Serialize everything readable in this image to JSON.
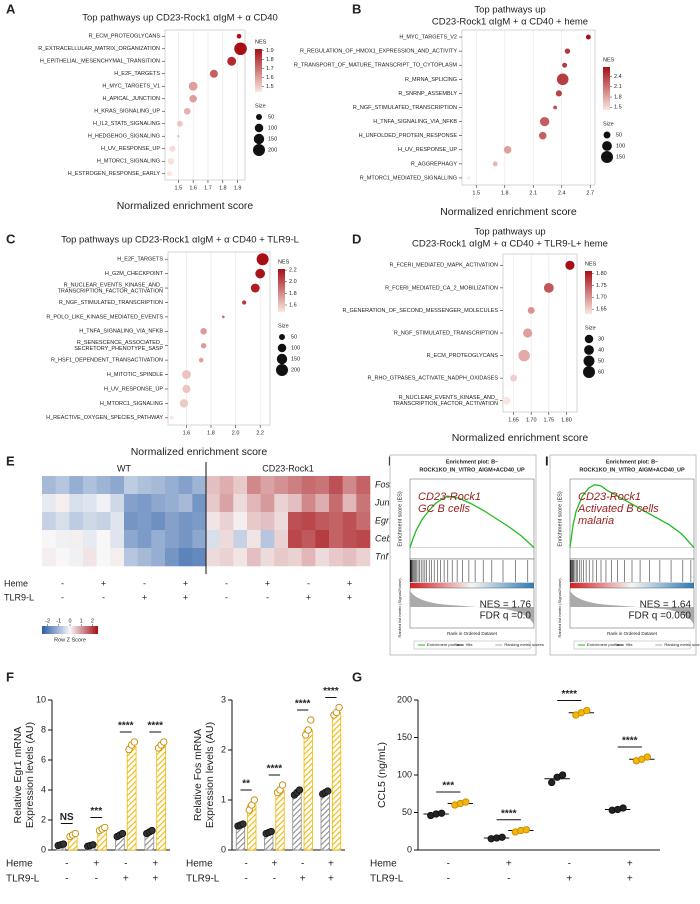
{
  "chart_data": [
    {
      "type": "dotplot",
      "panel_label": "A",
      "title": [
        "Top pathways up CD23-Rock1 αIgM + α CD40"
      ],
      "categories": [
        "R_ECM_PROTEOGLYCANS",
        "R_EXTRACELLULAR_MATRIX_ORGANIZATION",
        "H_EPITHELIAL_MESENCHYMAL_TRANSITION",
        "H_E2F_TARGETS",
        "H_MYC_TARGETS_V1",
        "H_APICAL_JUNCTION",
        "H_KRAS_SIGNALING_UP",
        "H_IL2_STAT5_SIGNALING",
        "H_HEDGEHOG_SIGNALING",
        "H_UV_RESPONSE_UP",
        "H_MTORC1_SIGNALING",
        "H_ESTROGEN_RESPONSE_EARLY"
      ],
      "values": [
        1.91,
        1.92,
        1.86,
        1.74,
        1.6,
        1.6,
        1.56,
        1.51,
        1.5,
        1.46,
        1.45,
        1.44
      ],
      "sizes": [
        30,
        220,
        110,
        90,
        110,
        80,
        60,
        50,
        10,
        50,
        60,
        40
      ],
      "xlim": [
        1.41,
        1.95
      ],
      "xticks": [
        1.5,
        1.6,
        1.7,
        1.8,
        1.9
      ],
      "xlabel": "Normalized enrichment score",
      "color_title": "NES",
      "color_range": [
        1.44,
        1.92
      ],
      "color_ticks": [
        1.5,
        1.6,
        1.7,
        1.8,
        1.9
      ],
      "color_low": "#fbe6df",
      "color_high": "#a50f15",
      "size_title": "Size",
      "size_legend": [
        50,
        100,
        150,
        200
      ]
    },
    {
      "type": "dotplot",
      "panel_label": "B",
      "title": [
        "Top pathways up",
        "CD23-Rock1 αIgM + α CD40 + heme"
      ],
      "categories": [
        "H_MYC_TARGETS_V2",
        "R_REGULATION_OF_HMOX1_EXPRESSION_AND_ACTIVITY",
        "R_TRANSPORT_OF_MATURE_TRANSCRIPT_TO_CYTOPLASM",
        "R_MRNA_SPLICING",
        "R_SNRNP_ASSEMBLY",
        "R_NGF_STIMULATED_TRANSCRIPTION",
        "H_TNFA_SIGNALING_VIA_NFKB",
        "H_UNFOLDED_PROTEIN_RESPONSE",
        "H_UV_RESPONSE_UP",
        "R_AGGREPHAGY",
        "R_MTORC1_MEDIATED_SIGNALLING"
      ],
      "values": [
        2.68,
        2.46,
        2.43,
        2.41,
        2.37,
        2.33,
        2.22,
        2.2,
        1.83,
        1.7,
        1.42
      ],
      "sizes": [
        25,
        30,
        25,
        140,
        40,
        15,
        90,
        60,
        60,
        25,
        10
      ],
      "xlim": [
        1.35,
        2.75
      ],
      "xticks": [
        1.5,
        1.8,
        2.1,
        2.4,
        2.7
      ],
      "xlabel": "Normalized enrichment score",
      "color_title": "NES",
      "color_range": [
        1.42,
        2.68
      ],
      "color_ticks": [
        1.5,
        1.8,
        2.1,
        2.4
      ],
      "color_low": "#fbe6df",
      "color_high": "#a50f15",
      "size_title": "Size",
      "size_legend": [
        50,
        100,
        150
      ]
    },
    {
      "type": "dotplot",
      "panel_label": "C",
      "title": [
        "Top pathways up CD23-Rock1 αIgM + α CD40 + TLR9-L"
      ],
      "categories": [
        "H_E2F_TARGETS",
        "H_G2M_CHECKPOINT",
        "R_NUCLEAR_EVENTS_KINASE_AND_\nTRANSCRIPTION_FACTOR_ACTIVATION",
        "R_NGF_STIMULATED_TRANSCRIPTION",
        "R_POLO_LIKE_KINASE_MEDIATED_EVENTS",
        "H_TNFA_SIGNALING_VIA_NFKB",
        "R_SENESCENCE_ASSOCIATED_\nSECRETORY_PHENOTYPE_SASP",
        "R_HSF1_DEPENDENT_TRANSACTIVATION",
        "H_MITOTIC_SPINDLE",
        "H_UV_RESPONSE_UP",
        "H_MTORC1_SIGNALING",
        "H_REACTIVE_OXYGEN_SPECIES_PATHWAY"
      ],
      "values": [
        2.22,
        2.2,
        2.16,
        2.07,
        1.9,
        1.74,
        1.74,
        1.72,
        1.6,
        1.6,
        1.58,
        1.48
      ],
      "sizes": [
        200,
        130,
        110,
        25,
        10,
        60,
        40,
        30,
        110,
        90,
        100,
        20
      ],
      "xlim": [
        1.45,
        2.28
      ],
      "xticks": [
        1.6,
        1.8,
        {
          "value": 2,
          "label": "2.0"
        },
        2.2
      ],
      "xlabel": "Normalized enrichment score",
      "color_title": "NES",
      "color_range": [
        1.48,
        2.22
      ],
      "color_ticks": [
        1.6,
        1.8,
        {
          "value": 2,
          "label": "2.0"
        },
        2.2
      ],
      "color_low": "#fbe6df",
      "color_high": "#a50f15",
      "size_title": "Size",
      "size_legend": [
        50,
        100,
        150,
        200
      ]
    },
    {
      "type": "dotplot",
      "panel_label": "D",
      "title": [
        "Top pathways up",
        "CD23-Rock1 αIgM + α CD40 + TLR9-L+ heme"
      ],
      "categories": [
        "R_FCERI_MEDIATED_MAPK_ACTIVATION",
        "R_FCERI_MEDIATED_CA_2_MOBILIZATION",
        "R_GENERATION_OF_SECOND_MESSENGER_MOLECULES",
        "R_NGF_STIMULATED_TRANSCRIPTION",
        "R_ECM_PROTEOGLYCANS",
        "R_RHO_GTPASES_ACTIVATE_NADPH_OXIDASES",
        "R_NUCLEAR_EVENTS_KINASE_AND_\nTRANSCRIPTION_FACTOR_ACTIVATION"
      ],
      "values": [
        1.81,
        1.75,
        1.7,
        1.69,
        1.68,
        1.65,
        1.63
      ],
      "sizes": [
        35,
        40,
        20,
        35,
        55,
        20,
        25
      ],
      "xlim": [
        1.62,
        1.83
      ],
      "xticks": [
        1.65,
        {
          "value": 1.7,
          "label": "1.70"
        },
        1.75,
        {
          "value": 1.8,
          "label": "1.80"
        }
      ],
      "xlabel": "Normalized enrichment score",
      "color_title": "NES",
      "color_range": [
        1.63,
        1.81
      ],
      "color_ticks": [
        1.65,
        {
          "value": 1.7,
          "label": "1.70"
        },
        1.75,
        {
          "value": 1.8,
          "label": "1.80"
        }
      ],
      "color_low": "#fbe6df",
      "color_high": "#a50f15",
      "size_title": "Size",
      "size_legend": [
        30,
        40,
        50,
        60
      ]
    },
    {
      "type": "heatmap",
      "panel_label": "E",
      "column_groups": [
        "WT",
        "CD23-Rock1"
      ],
      "row_labels": [
        "Fos",
        "Junb",
        "Egr1",
        "Cebpb",
        "Tnf"
      ],
      "values": [
        [
          -1.0,
          -0.8,
          -1.2,
          -0.9,
          -1.1,
          -1.3,
          -0.7,
          -0.9,
          -1.0,
          -1.2,
          -1.4,
          -1.1,
          0.6,
          0.8,
          0.5,
          1.2,
          0.9,
          1.1,
          1.3,
          1.5,
          1.4,
          1.8,
          1.2,
          1.6
        ],
        [
          -0.2,
          0.1,
          -0.4,
          -0.3,
          -0.1,
          -0.5,
          -1.4,
          -1.5,
          -1.3,
          -1.2,
          -1.0,
          -1.6,
          0.5,
          0.9,
          0.3,
          0.7,
          1.0,
          0.4,
          0.6,
          1.2,
          0.8,
          1.5,
          0.7,
          1.4
        ],
        [
          -0.6,
          -0.4,
          -0.7,
          -0.5,
          -0.6,
          -0.3,
          -1.6,
          -1.5,
          -1.7,
          -1.4,
          -1.6,
          -1.5,
          0.2,
          0.4,
          0.1,
          0.5,
          0.6,
          0.3,
          1.8,
          1.9,
          1.7,
          1.6,
          1.8,
          1.5
        ],
        [
          0.0,
          -0.1,
          0.1,
          -0.2,
          0.0,
          -0.3,
          -1.3,
          -1.5,
          -1.2,
          -1.4,
          -1.6,
          -1.3,
          -0.4,
          0.3,
          -0.6,
          0.2,
          -0.8,
          0.4,
          1.9,
          1.7,
          2.0,
          1.6,
          1.8,
          1.9
        ],
        [
          0.1,
          0.0,
          -0.1,
          0.2,
          0.0,
          0.1,
          -0.8,
          -1.0,
          -1.2,
          -1.6,
          -1.9,
          -1.8,
          0.3,
          0.4,
          0.2,
          0.6,
          0.3,
          0.5,
          0.4,
          0.7,
          0.3,
          0.5,
          0.6,
          0.4
        ]
      ],
      "conditions": [
        {
          "name": "Heme",
          "labels": [
            "-",
            "+",
            "-",
            "+",
            "-",
            "+",
            "-",
            "+"
          ]
        },
        {
          "name": "TLR9-L",
          "labels": [
            "-",
            "-",
            "+",
            "+",
            "-",
            "-",
            "+",
            "+"
          ]
        }
      ],
      "zlim": [
        -2.5,
        2.5
      ],
      "colors": [
        "#2c5ea8",
        "#f7f7f7",
        "#a50f15"
      ],
      "color_ticks": [
        -2,
        -1,
        0,
        1,
        2
      ],
      "color_title": "Row Z Score"
    },
    {
      "type": "line",
      "panel_label": "H",
      "title": [
        "Enrichment plot: B–",
        "ROCK1KO_IN_VITRO_AIGM+ACD40_UP"
      ],
      "x": [
        0,
        500,
        1000,
        2000,
        3000,
        4000,
        5000,
        6000,
        8000,
        10000,
        12000,
        14000,
        16000,
        18000,
        20000
      ],
      "values": [
        0,
        0.08,
        0.15,
        0.25,
        0.32,
        0.38,
        0.42,
        0.45,
        0.43,
        0.38,
        0.32,
        0.25,
        0.18,
        0.1,
        0
      ],
      "hits": [
        50,
        120,
        200,
        310,
        420,
        600,
        750,
        900,
        1100,
        1300,
        1500,
        1800,
        2100,
        2400,
        2700,
        3100,
        3500,
        3900,
        4400,
        4900,
        5500,
        6100,
        6800,
        7600,
        8500,
        9500,
        10500,
        11800,
        13200,
        15000,
        17000,
        19000
      ],
      "xlim": [
        0,
        20000
      ],
      "ylim": [
        -0.1,
        0.6
      ],
      "color": "#22bb22",
      "ylabel": "Enrichment score (ES)",
      "ylabel2": "Ranked list metric (Signal2Noise)",
      "xlabel": "Rank in Ordered Dataset",
      "annotation": [
        "CD23-Rock1",
        "GC B cells"
      ],
      "stats": [
        "NES = 1.76",
        "FDR q =0.0"
      ],
      "legend": [
        "Enrichment profile",
        "Hits",
        "Ranking metric scores"
      ]
    },
    {
      "type": "line",
      "panel_label": "I",
      "title": [
        "Enrichment plot: B–",
        "ROCK1KO_IN_VITRO_AIGM+ACD40_UP"
      ],
      "x": [
        0,
        500,
        1000,
        2000,
        3000,
        4000,
        5000,
        6000,
        8000,
        10000,
        12000,
        14000,
        16000,
        18000,
        20000
      ],
      "values": [
        0,
        0.2,
        0.32,
        0.45,
        0.52,
        0.55,
        0.54,
        0.5,
        0.44,
        0.38,
        0.32,
        0.26,
        0.2,
        0.12,
        0
      ],
      "hits": [
        30,
        90,
        160,
        250,
        350,
        480,
        620,
        800,
        1000,
        1250,
        1500,
        1800,
        2200,
        2600,
        3100,
        3700,
        4300,
        5000,
        5800,
        6700,
        7700,
        8800,
        10000,
        11300,
        12800,
        14500,
        16300,
        18200,
        19500
      ],
      "xlim": [
        0,
        20000
      ],
      "ylim": [
        -0.1,
        0.6
      ],
      "color": "#22bb22",
      "ylabel": "Enrichment score (ES)",
      "ylabel2": "Ranked list metric (Signal2Noise)",
      "xlabel": "Rank in Ordered Dataset",
      "annotation": [
        "CD23-Rock1",
        "Activated B cells",
        "malaria"
      ],
      "stats": [
        "NES = 1.64",
        "FDR q =0.060"
      ],
      "legend": [
        "Enrichment profile",
        "Hits",
        "Ranking metric scores"
      ]
    },
    {
      "type": "bar",
      "panel_label": "F",
      "ylabel": [
        "Relative Egr1 mRNA",
        "Expression levels (AU)"
      ],
      "ylim": [
        0,
        10
      ],
      "yticks": [
        0,
        2,
        4,
        6,
        8,
        10
      ],
      "series": [
        {
          "color": "#8c8c8c",
          "values": [
            0.35,
            0.3,
            1.0,
            1.2
          ],
          "points": [
            [
              0.3,
              0.35,
              0.4
            ],
            [
              0.25,
              0.3,
              0.35
            ],
            [
              0.9,
              1.0,
              1.1
            ],
            [
              1.1,
              1.2,
              1.3
            ]
          ]
        },
        {
          "color": "#f2b705",
          "values": [
            1.0,
            1.4,
            6.9,
            7.0
          ],
          "points": [
            [
              0.9,
              1.0,
              1.1
            ],
            [
              1.3,
              1.4,
              1.5
            ],
            [
              6.7,
              7.0,
              7.2
            ],
            [
              6.8,
              7.0,
              7.2
            ]
          ]
        }
      ],
      "significance": [
        "NS",
        "***",
        "****",
        "****"
      ],
      "conditions": [
        {
          "name": "Heme",
          "labels": [
            "-",
            "+",
            "-",
            "+"
          ]
        },
        {
          "name": "TLR9-L",
          "labels": [
            "-",
            "-",
            "+",
            "+"
          ]
        }
      ]
    },
    {
      "type": "bar",
      "ylabel": [
        "Relative Fos mRNA",
        "Expression levels (AU)"
      ],
      "ylim": [
        0,
        3
      ],
      "yticks": [
        0,
        1,
        2,
        3
      ],
      "series": [
        {
          "color": "#8c8c8c",
          "values": [
            0.5,
            0.35,
            1.15,
            1.15
          ],
          "points": [
            [
              0.48,
              0.5,
              0.52
            ],
            [
              0.33,
              0.35,
              0.37
            ],
            [
              1.1,
              1.15,
              1.2
            ],
            [
              1.12,
              1.15,
              1.18
            ]
          ]
        },
        {
          "color": "#f2b705",
          "values": [
            0.9,
            1.2,
            2.4,
            2.75
          ],
          "points": [
            [
              0.8,
              0.9,
              1.0
            ],
            [
              1.15,
              1.2,
              1.3
            ],
            [
              2.3,
              2.4,
              2.6
            ],
            [
              2.7,
              2.75,
              2.85
            ]
          ]
        }
      ],
      "significance": [
        "**",
        "****",
        "****",
        "****"
      ],
      "conditions": [
        {
          "name": "Heme",
          "labels": [
            "-",
            "+",
            "-",
            "+"
          ]
        },
        {
          "name": "TLR9-L",
          "labels": [
            "-",
            "-",
            "+",
            "+"
          ]
        }
      ]
    },
    {
      "type": "strip",
      "panel_label": "G",
      "ylabel": [
        "CCL5 (ng/mL)"
      ],
      "ylim": [
        0,
        200
      ],
      "yticks": [
        0,
        50,
        100,
        150,
        200
      ],
      "series": [
        {
          "color": "#222222",
          "values": [
            48,
            16,
            95,
            54
          ],
          "points": [
            [
              46,
              48,
              49
            ],
            [
              15,
              16,
              17
            ],
            [
              90,
              97,
              100
            ],
            [
              53,
              54,
              56
            ]
          ]
        },
        {
          "color": "#f2b705",
          "values": [
            62,
            26,
            183,
            121
          ],
          "points": [
            [
              60,
              62,
              64
            ],
            [
              24,
              26,
              27
            ],
            [
              180,
              183,
              186
            ],
            [
              119,
              121,
              124
            ]
          ]
        }
      ],
      "significance": [
        "***",
        "****",
        "****",
        "****"
      ],
      "conditions": [
        {
          "name": "Heme",
          "labels": [
            "-",
            "+",
            "-",
            "+"
          ]
        },
        {
          "name": "TLR9-L",
          "labels": [
            "-",
            "-",
            "+",
            "+"
          ]
        }
      ]
    }
  ]
}
